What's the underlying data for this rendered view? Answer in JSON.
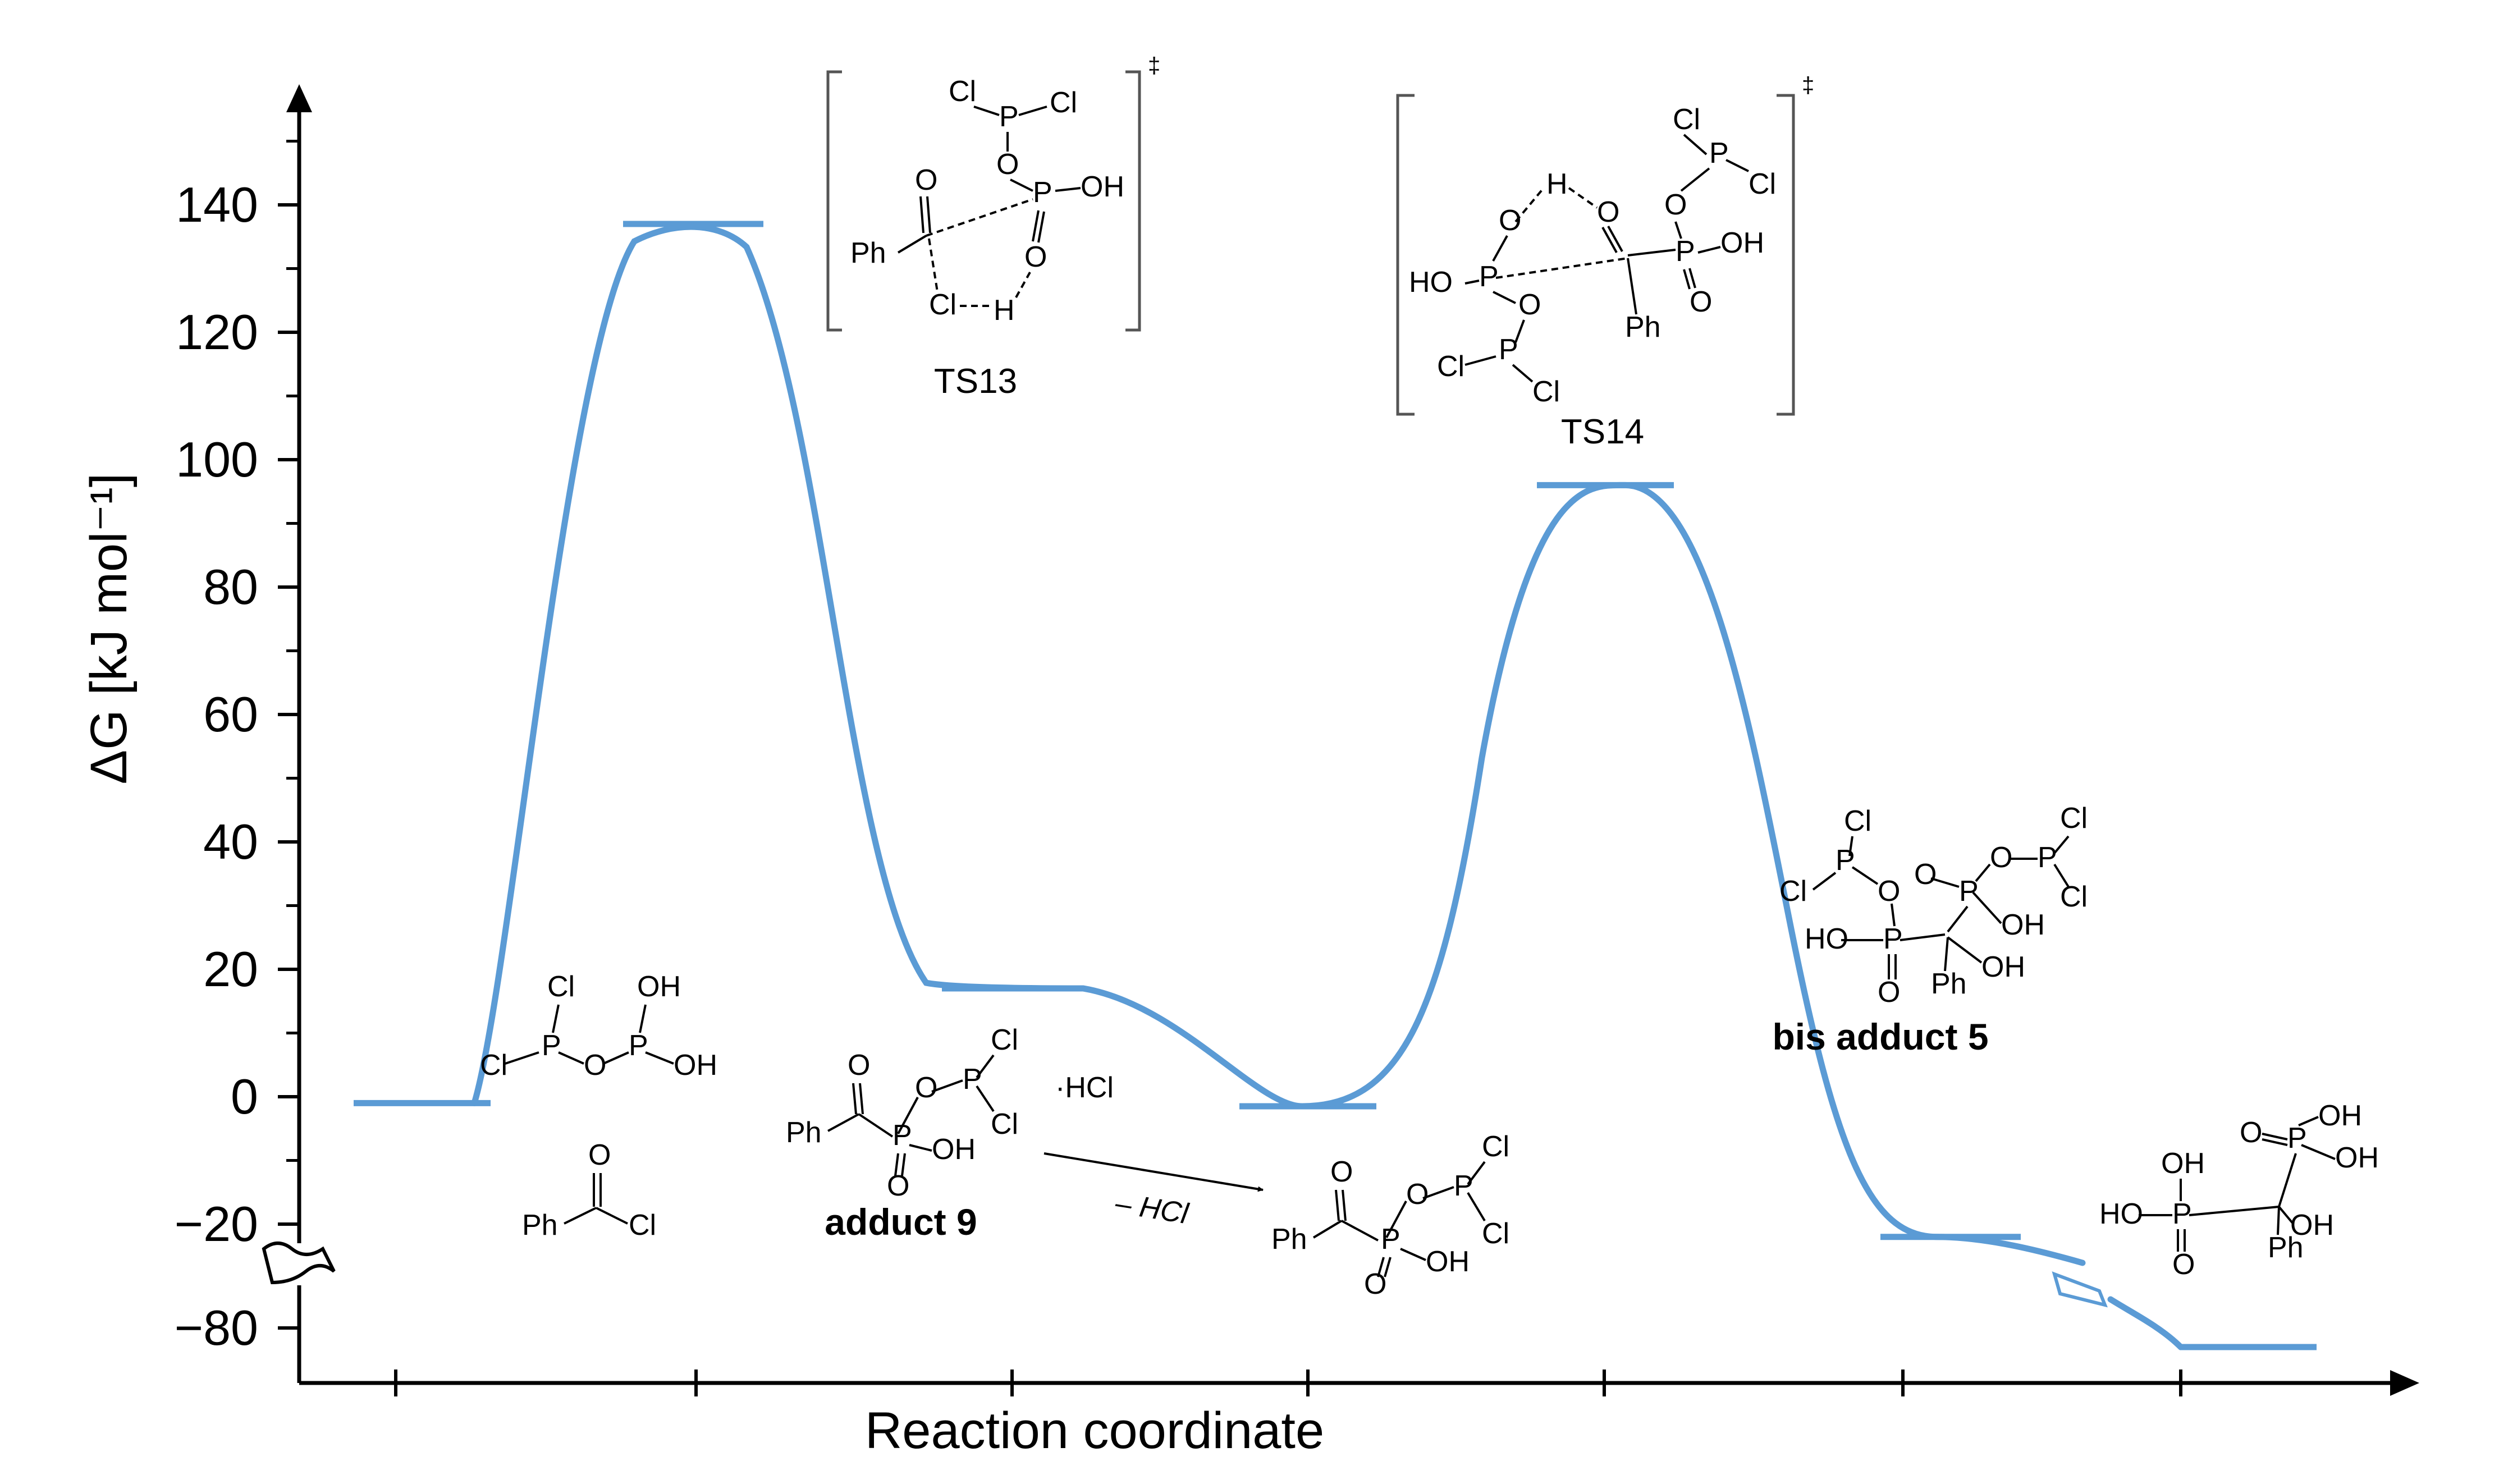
{
  "chart_data": {
    "type": "line",
    "title": "",
    "xlabel": "Reaction coordinate",
    "ylabel": "ΔG [kJ mol⁻¹]",
    "ylim": [
      -80,
      150
    ],
    "axis_break": {
      "from": -30,
      "to": -80
    },
    "yticks": [
      140,
      120,
      100,
      80,
      60,
      40,
      20,
      0,
      -20,
      -80
    ],
    "ytick_labels": [
      "140",
      "120",
      "100",
      "80",
      "60",
      "40",
      "20",
      "0",
      "−20",
      "−80"
    ],
    "grid": false,
    "legend": "none",
    "series": [
      {
        "points": [
          {
            "x": 1,
            "y": -1
          },
          {
            "x": 2,
            "y": 137
          },
          {
            "x": 3,
            "y": 17
          },
          {
            "x": 4,
            "y": -1.5
          },
          {
            "x": 5,
            "y": 96
          },
          {
            "x": 6,
            "y": -22
          },
          {
            "x": 7,
            "y": -83
          }
        ]
      }
    ],
    "labels": {
      "ts13": "TS13",
      "ts14": "TS14",
      "dagger": "‡",
      "adduct9": "adduct 9",
      "bis_adduct5": "bis adduct 5",
      "hcl": "·HCl",
      "minus_hcl": "– HCl"
    },
    "colors": {
      "profile": "#5b9bd5",
      "axis": "#000000"
    }
  },
  "chem_text": {
    "ph": "Ph",
    "cl": "Cl",
    "p": "P",
    "o": "O",
    "oh": "OH",
    "ho": "HO",
    "h": "H"
  }
}
